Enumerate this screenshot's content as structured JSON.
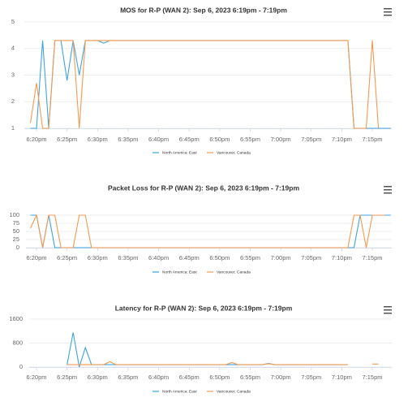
{
  "chart_data": [
    {
      "type": "line",
      "title": "MOS for R-P (WAN 2): Sep 6, 2023 6:19pm - 7:19pm",
      "x": [
        "6:19pm",
        "6:20pm",
        "6:21pm",
        "6:22pm",
        "6:23pm",
        "6:24pm",
        "6:25pm",
        "6:26pm",
        "6:27pm",
        "6:28pm",
        "6:29pm",
        "6:30pm",
        "6:31pm",
        "6:32pm",
        "6:33pm",
        "6:34pm",
        "6:35pm",
        "6:36pm",
        "6:37pm",
        "6:38pm",
        "6:39pm",
        "6:40pm",
        "6:41pm",
        "6:42pm",
        "6:43pm",
        "6:44pm",
        "6:45pm",
        "6:46pm",
        "6:47pm",
        "6:48pm",
        "6:49pm",
        "6:50pm",
        "6:51pm",
        "6:52pm",
        "6:53pm",
        "6:54pm",
        "6:55pm",
        "6:56pm",
        "6:57pm",
        "6:58pm",
        "6:59pm",
        "7:00pm",
        "7:01pm",
        "7:02pm",
        "7:03pm",
        "7:04pm",
        "7:05pm",
        "7:06pm",
        "7:07pm",
        "7:08pm",
        "7:09pm",
        "7:10pm",
        "7:11pm",
        "7:12pm",
        "7:13pm",
        "7:14pm",
        "7:15pm",
        "7:16pm",
        "7:17pm",
        "7:18pm"
      ],
      "xticks": [
        "6:20pm",
        "6:25pm",
        "6:30pm",
        "6:35pm",
        "6:40pm",
        "6:45pm",
        "6:50pm",
        "6:55pm",
        "7:00pm",
        "7:05pm",
        "7:10pm",
        "7:15pm"
      ],
      "ylim": [
        1,
        5
      ],
      "yticks": [
        1,
        2,
        3,
        4,
        5
      ],
      "grid": true,
      "series": [
        {
          "name": "North America: East",
          "color": "#3fa3e0",
          "values": [
            1,
            1,
            4.3,
            1,
            4.3,
            4.3,
            2.8,
            4.3,
            3,
            4.3,
            4.3,
            4.3,
            4.2,
            4.3,
            4.3,
            4.3,
            4.3,
            4.3,
            4.3,
            4.3,
            4.3,
            4.3,
            4.3,
            4.3,
            4.3,
            4.3,
            4.3,
            4.3,
            4.3,
            4.3,
            4.3,
            4.3,
            4.3,
            4.3,
            4.3,
            4.3,
            4.3,
            4.3,
            4.3,
            4.3,
            4.3,
            4.3,
            4.3,
            4.3,
            4.3,
            4.3,
            4.3,
            4.3,
            4.3,
            4.3,
            4.3,
            4.3,
            4.3,
            1,
            1,
            1,
            1,
            1,
            1,
            1
          ]
        },
        {
          "name": "Vancouver, Canada",
          "color": "#f39a4f",
          "values": [
            1.2,
            2.7,
            1,
            1,
            4.3,
            4.3,
            4.3,
            4.3,
            1,
            4.3,
            4.3,
            4.3,
            4.3,
            4.3,
            4.3,
            4.3,
            4.3,
            4.3,
            4.3,
            4.3,
            4.3,
            4.3,
            4.3,
            4.3,
            4.3,
            4.3,
            4.3,
            4.3,
            4.3,
            4.3,
            4.3,
            4.3,
            4.3,
            4.3,
            4.3,
            4.3,
            4.3,
            4.3,
            4.3,
            4.3,
            4.3,
            4.3,
            4.3,
            4.3,
            4.3,
            4.3,
            4.3,
            4.3,
            4.3,
            4.3,
            4.3,
            4.3,
            4.3,
            1,
            1,
            1,
            4.3,
            1,
            null,
            null
          ]
        }
      ]
    },
    {
      "type": "line",
      "title": "Packet Loss for R-P (WAN 2): Sep 6, 2023 6:19pm - 7:19pm",
      "x": [
        "6:19pm",
        "6:20pm",
        "6:21pm",
        "6:22pm",
        "6:23pm",
        "6:24pm",
        "6:25pm",
        "6:26pm",
        "6:27pm",
        "6:28pm",
        "6:29pm",
        "6:30pm",
        "6:31pm",
        "6:32pm",
        "6:33pm",
        "6:34pm",
        "6:35pm",
        "6:36pm",
        "6:37pm",
        "6:38pm",
        "6:39pm",
        "6:40pm",
        "6:41pm",
        "6:42pm",
        "6:43pm",
        "6:44pm",
        "6:45pm",
        "6:46pm",
        "6:47pm",
        "6:48pm",
        "6:49pm",
        "6:50pm",
        "6:51pm",
        "6:52pm",
        "6:53pm",
        "6:54pm",
        "6:55pm",
        "6:56pm",
        "6:57pm",
        "6:58pm",
        "6:59pm",
        "7:00pm",
        "7:01pm",
        "7:02pm",
        "7:03pm",
        "7:04pm",
        "7:05pm",
        "7:06pm",
        "7:07pm",
        "7:08pm",
        "7:09pm",
        "7:10pm",
        "7:11pm",
        "7:12pm",
        "7:13pm",
        "7:14pm",
        "7:15pm",
        "7:16pm",
        "7:17pm",
        "7:18pm"
      ],
      "xticks": [
        "6:20pm",
        "6:25pm",
        "6:30pm",
        "6:35pm",
        "6:40pm",
        "6:45pm",
        "6:50pm",
        "6:55pm",
        "7:00pm",
        "7:05pm",
        "7:10pm",
        "7:15pm"
      ],
      "ylim": [
        0,
        100
      ],
      "yticks": [
        0,
        25,
        50,
        75,
        100
      ],
      "grid": true,
      "series": [
        {
          "name": "North America: East",
          "color": "#3fa3e0",
          "values": [
            100,
            100,
            0,
            100,
            0,
            0,
            0,
            0,
            0,
            0,
            0,
            0,
            0,
            0,
            0,
            0,
            0,
            0,
            0,
            0,
            0,
            0,
            0,
            0,
            0,
            0,
            0,
            0,
            0,
            0,
            0,
            0,
            0,
            0,
            0,
            0,
            0,
            0,
            0,
            0,
            0,
            0,
            0,
            0,
            0,
            0,
            0,
            0,
            0,
            0,
            0,
            0,
            0,
            0,
            100,
            100,
            100,
            100,
            100,
            100
          ]
        },
        {
          "name": "Vancouver, Canada",
          "color": "#f39a4f",
          "values": [
            60,
            100,
            0,
            100,
            100,
            0,
            0,
            0,
            100,
            100,
            0,
            0,
            0,
            0,
            0,
            0,
            0,
            0,
            0,
            0,
            0,
            0,
            0,
            0,
            0,
            0,
            0,
            0,
            0,
            0,
            0,
            0,
            0,
            0,
            0,
            0,
            0,
            0,
            0,
            0,
            0,
            0,
            0,
            0,
            0,
            0,
            0,
            0,
            0,
            0,
            0,
            0,
            0,
            100,
            100,
            0,
            100,
            100,
            100,
            null
          ]
        }
      ]
    },
    {
      "type": "line",
      "title": "Latency for R-P (WAN 2): Sep 6, 2023 6:19pm - 7:19pm",
      "x": [
        "6:19pm",
        "6:20pm",
        "6:21pm",
        "6:22pm",
        "6:23pm",
        "6:24pm",
        "6:25pm",
        "6:26pm",
        "6:27pm",
        "6:28pm",
        "6:29pm",
        "6:30pm",
        "6:31pm",
        "6:32pm",
        "6:33pm",
        "6:34pm",
        "6:35pm",
        "6:36pm",
        "6:37pm",
        "6:38pm",
        "6:39pm",
        "6:40pm",
        "6:41pm",
        "6:42pm",
        "6:43pm",
        "6:44pm",
        "6:45pm",
        "6:46pm",
        "6:47pm",
        "6:48pm",
        "6:49pm",
        "6:50pm",
        "6:51pm",
        "6:52pm",
        "6:53pm",
        "6:54pm",
        "6:55pm",
        "6:56pm",
        "6:57pm",
        "6:58pm",
        "6:59pm",
        "7:00pm",
        "7:01pm",
        "7:02pm",
        "7:03pm",
        "7:04pm",
        "7:05pm",
        "7:06pm",
        "7:07pm",
        "7:08pm",
        "7:09pm",
        "7:10pm",
        "7:11pm",
        "7:12pm",
        "7:13pm",
        "7:14pm",
        "7:15pm",
        "7:16pm",
        "7:17pm",
        "7:18pm"
      ],
      "xticks": [
        "6:20pm",
        "6:25pm",
        "6:30pm",
        "6:35pm",
        "6:40pm",
        "6:45pm",
        "6:50pm",
        "6:55pm",
        "7:00pm",
        "7:05pm",
        "7:10pm",
        "7:15pm"
      ],
      "ylim": [
        0,
        1600
      ],
      "yticks": [
        0,
        800,
        1600
      ],
      "grid": true,
      "series": [
        {
          "name": "North America: East",
          "color": "#3fa3e0",
          "values": [
            null,
            null,
            null,
            null,
            null,
            null,
            80,
            1150,
            0,
            650,
            80,
            80,
            80,
            80,
            80,
            80,
            80,
            80,
            80,
            80,
            80,
            80,
            80,
            80,
            80,
            80,
            80,
            80,
            80,
            80,
            80,
            80,
            80,
            80,
            80,
            80,
            80,
            80,
            80,
            120,
            80,
            80,
            80,
            80,
            80,
            80,
            80,
            80,
            80,
            80,
            80,
            80,
            80,
            null,
            null,
            null,
            null,
            null,
            null,
            null
          ]
        },
        {
          "name": "Vancouver, Canada",
          "color": "#f39a4f",
          "values": [
            null,
            null,
            null,
            null,
            null,
            null,
            80,
            80,
            80,
            80,
            80,
            80,
            80,
            180,
            80,
            80,
            80,
            80,
            80,
            80,
            80,
            80,
            80,
            80,
            80,
            80,
            80,
            80,
            80,
            80,
            80,
            80,
            80,
            150,
            80,
            80,
            80,
            80,
            80,
            110,
            80,
            80,
            80,
            80,
            80,
            80,
            80,
            80,
            80,
            80,
            80,
            80,
            80,
            null,
            null,
            null,
            100,
            100,
            null,
            null
          ]
        }
      ]
    }
  ]
}
